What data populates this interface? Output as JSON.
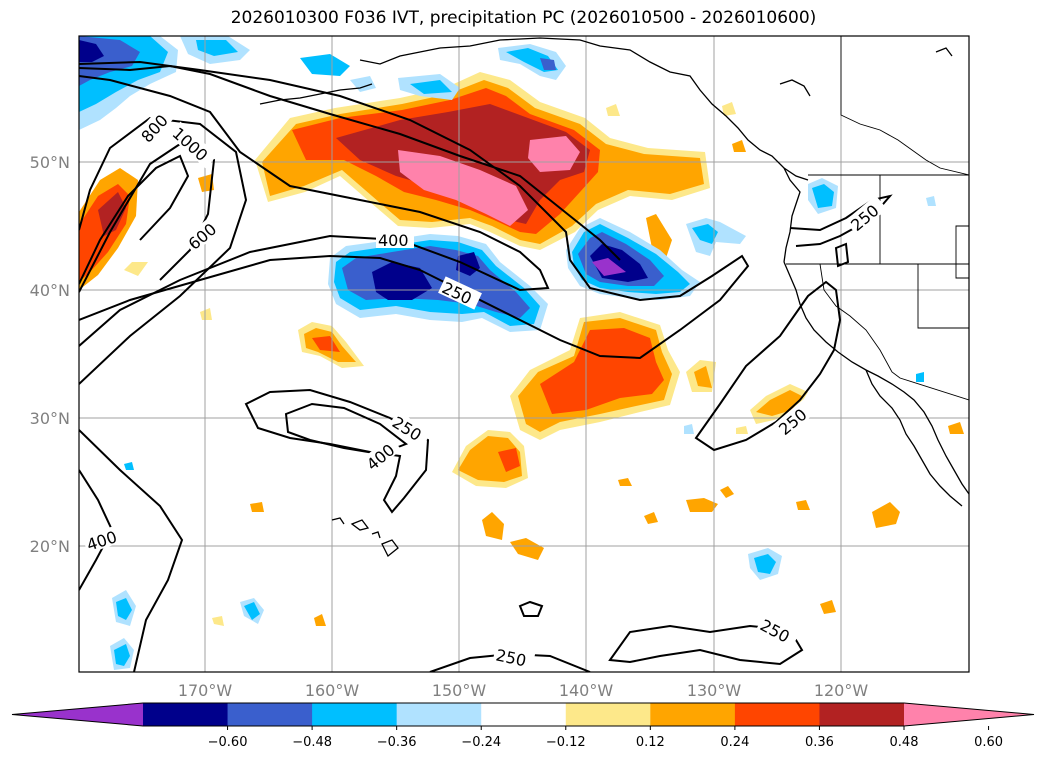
{
  "title": "2026010300 F036 IVT, precipitation PC (2026010500 - 2026010600)",
  "lat_labels": [
    "50°N",
    "40°N",
    "30°N",
    "20°N"
  ],
  "lon_labels": [
    "170°W",
    "160°W",
    "150°W",
    "140°W",
    "130°W",
    "120°W"
  ],
  "colorbar": {
    "ticks": [
      "−0.60",
      "−0.48",
      "−0.36",
      "−0.24",
      "−0.12",
      "0.12",
      "0.24",
      "0.36",
      "0.48",
      "0.60"
    ],
    "colors": [
      "#9932cc",
      "#00008b",
      "#3a5fcd",
      "#00bfff",
      "#b0e2ff",
      "#ffffff",
      "#fde88a",
      "#ffa500",
      "#ff4500",
      "#b22222",
      "#ff82ab"
    ]
  },
  "contour_labels": {
    "c800": "800",
    "c1000": "1000",
    "c600": "600",
    "c400a": "400",
    "c250a": "250",
    "c250b": "250",
    "c250c": "250",
    "c400b": "400",
    "c250d": "250",
    "c400c": "400",
    "c250e": "250",
    "c250f": "250"
  }
}
